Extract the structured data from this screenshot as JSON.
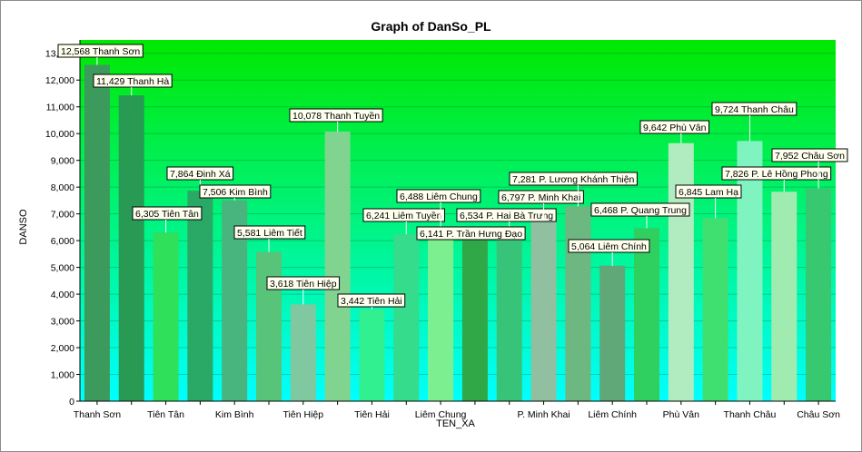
{
  "chart_data": {
    "type": "bar",
    "title": "Graph of DanSo_PL",
    "xlabel": "TEN_XA",
    "ylabel": "DANSO",
    "ylim": [
      0,
      13500
    ],
    "yticks": [
      0,
      1000,
      2000,
      3000,
      4000,
      5000,
      6000,
      7000,
      8000,
      9000,
      10000,
      11000,
      12000,
      13000
    ],
    "ytick_labels": [
      "0",
      "1,000",
      "2,000",
      "3,000",
      "4,000",
      "5,000",
      "6,000",
      "7,000",
      "8,000",
      "9,000",
      "10,000",
      "11,000",
      "12,000",
      "13,000"
    ],
    "categories": [
      "Thanh Sơn",
      "Thanh Hà",
      "Tiên Tân",
      "Đinh Xá",
      "Kim Bình",
      "Liêm Tiết",
      "Tiên Hiệp",
      "Thanh Tuyền",
      "Tiên Hải",
      "Liêm Tuyền",
      "Liêm Chung",
      "P. Trần Hưng Đạo",
      "P. Hai Bà Trưng",
      "P. Minh Khai",
      "P. Lương Khánh Thiện",
      "Liêm Chính",
      "P. Quang Trung",
      "Phù Vân",
      "Lam Hạ",
      "Thanh Châu",
      "P. Lê Hồng Phong",
      "Châu Sơn"
    ],
    "values": [
      12568,
      11429,
      6305,
      7864,
      7506,
      5581,
      3618,
      10078,
      3442,
      6241,
      6488,
      6141,
      6534,
      6797,
      7281,
      5064,
      6468,
      9642,
      6845,
      9724,
      7826,
      7952
    ],
    "data_labels": [
      "12,568 Thanh Sơn",
      "11,429 Thanh Hà",
      "6,305 Tiên Tân",
      "7,864 Đinh Xá",
      "7,506 Kim Bình",
      "5,581 Liêm Tiết",
      "3,618 Tiên Hiệp",
      "10,078 Thanh Tuyền",
      "3,442 Tiên Hải",
      "6,241 Liêm Tuyền",
      "6,488 Liêm Chung",
      "6,141 P. Trần Hưng Đạo",
      "6,534 P. Hai Bà Trưng",
      "6,797 P. Minh Khai",
      "7,281 P. Lương Khánh Thiện",
      "5,064 Liêm Chính",
      "6,468 P. Quang Trung",
      "9,642 Phù Vân",
      "6,845 Lam Hạ",
      "9,724 Thanh Châu",
      "7,826 P. Lê Hồng Phong",
      "7,952 Châu Sơn"
    ],
    "x_tick_labels": [
      "Thanh Sơn",
      "",
      "Tiên Tân",
      "",
      "Kim Bình",
      "",
      "Tiên Hiệp",
      "",
      "Tiên Hải",
      "",
      "Liêm Chung",
      "",
      "",
      "P. Minh Khai",
      "",
      "Liêm Chính",
      "",
      "Phù Vân",
      "",
      "Thanh Châu",
      "",
      "Châu Sơn"
    ],
    "bar_colors": [
      "#3c9a5c",
      "#289a54",
      "#2ee05a",
      "#2aa866",
      "#48b47e",
      "#58c47a",
      "#80c8a0",
      "#80d490",
      "#30f090",
      "#34dc8c",
      "#7cf090",
      "#30a848",
      "#38c478",
      "#90c0a0",
      "#6cb880",
      "#60a878",
      "#30d060",
      "#b0ecc0",
      "#40e070",
      "#80f4c0",
      "#a0ecb0",
      "#38c870"
    ],
    "grid": true,
    "legend": "none",
    "background_gradient": [
      "#00e800",
      "#00ffff"
    ]
  }
}
